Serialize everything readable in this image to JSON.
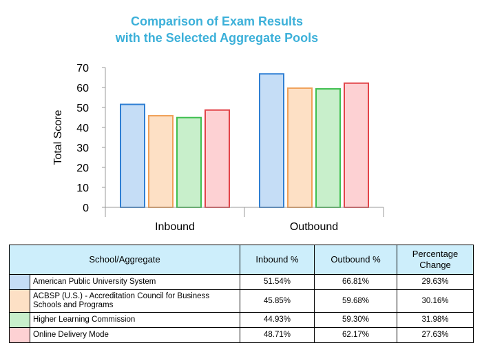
{
  "chart_data": {
    "type": "bar",
    "title": "Comparison of Exam Results\nwith the Selected Aggregate Pools",
    "title_lines": [
      "Comparison of Exam Results",
      "with the Selected Aggregate Pools"
    ],
    "xlabel": "",
    "ylabel": "Total Score",
    "ylim": [
      0,
      70
    ],
    "yticks": [
      0,
      10,
      20,
      30,
      40,
      50,
      60,
      70
    ],
    "grid": false,
    "categories": [
      "Inbound",
      "Outbound"
    ],
    "series": [
      {
        "name": "American Public University System",
        "values": [
          51.54,
          66.81
        ],
        "fill": "#c5ddf6",
        "stroke": "#2f7fd3"
      },
      {
        "name": "ACBSP (U.S.) - Accreditation Council for Business Schools and Programs",
        "values": [
          45.85,
          59.68
        ],
        "fill": "#fde0c5",
        "stroke": "#f0a057"
      },
      {
        "name": "Higher Learning Commission",
        "values": [
          44.93,
          59.3
        ],
        "fill": "#c8efcb",
        "stroke": "#3fbf4f"
      },
      {
        "name": "Online Delivery Mode",
        "values": [
          48.71,
          62.17
        ],
        "fill": "#fdd1d3",
        "stroke": "#e24449"
      }
    ]
  },
  "table": {
    "headers": [
      "School/Aggregate",
      "Inbound %",
      "Outbound %",
      "Percentage Change"
    ],
    "rows": [
      {
        "name": "American Public University System",
        "inbound": "51.54%",
        "outbound": "66.81%",
        "change": "29.63%",
        "color": "#c5ddf6"
      },
      {
        "name": "ACBSP (U.S.) - Accreditation Council for Business Schools and Programs",
        "inbound": "45.85%",
        "outbound": "59.68%",
        "change": "30.16%",
        "color": "#fde0c5"
      },
      {
        "name": "Higher Learning Commission",
        "inbound": "44.93%",
        "outbound": "59.30%",
        "change": "31.98%",
        "color": "#c8efcb"
      },
      {
        "name": "Online Delivery Mode",
        "inbound": "48.71%",
        "outbound": "62.17%",
        "change": "27.63%",
        "color": "#fdd1d3"
      }
    ]
  }
}
